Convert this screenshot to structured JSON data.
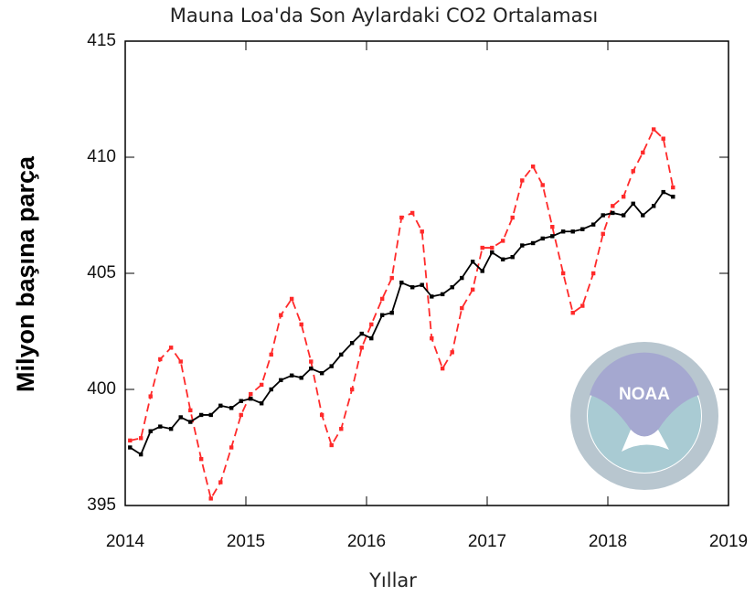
{
  "chart_data": {
    "type": "line",
    "title": "Mauna Loa'da Son Aylardaki CO2 Ortalaması",
    "xlabel": "Yıllar",
    "ylabel": "Milyon başına parça",
    "logo_text": "NOAA",
    "x": [
      2014.04,
      2014.13,
      2014.21,
      2014.29,
      2014.38,
      2014.46,
      2014.54,
      2014.63,
      2014.71,
      2014.79,
      2014.88,
      2014.96,
      2015.04,
      2015.13,
      2015.21,
      2015.29,
      2015.38,
      2015.46,
      2015.54,
      2015.63,
      2015.71,
      2015.79,
      2015.88,
      2015.96,
      2016.04,
      2016.13,
      2016.21,
      2016.29,
      2016.38,
      2016.46,
      2016.54,
      2016.63,
      2016.71,
      2016.79,
      2016.88,
      2016.96,
      2017.04,
      2017.13,
      2017.21,
      2017.29,
      2017.38,
      2017.46,
      2017.54,
      2017.63,
      2017.71,
      2017.79,
      2017.88,
      2017.96,
      2018.04,
      2018.13,
      2018.21,
      2018.29,
      2018.38,
      2018.46,
      2018.54
    ],
    "series": [
      {
        "color": "#ff2a2a",
        "dashed": true,
        "markers": true,
        "values": [
          397.8,
          397.9,
          399.7,
          401.3,
          401.8,
          401.2,
          399.1,
          397.0,
          395.3,
          396.0,
          397.5,
          398.9,
          399.8,
          400.2,
          401.5,
          403.2,
          403.9,
          402.8,
          401.2,
          398.9,
          397.6,
          398.3,
          400.0,
          401.8,
          402.8,
          403.9,
          404.8,
          407.4,
          407.6,
          406.8,
          402.2,
          400.9,
          401.6,
          403.5,
          404.3,
          406.1,
          406.1,
          406.4,
          407.4,
          409.0,
          409.6,
          408.8,
          407.0,
          405.0,
          403.3,
          403.6,
          405.0,
          406.7,
          407.9,
          408.3,
          409.4,
          410.2,
          411.2,
          410.8,
          408.7
        ]
      },
      {
        "color": "#000000",
        "dashed": false,
        "markers": true,
        "values": [
          397.5,
          397.2,
          398.2,
          398.4,
          398.3,
          398.8,
          398.6,
          398.9,
          398.9,
          399.3,
          399.2,
          399.5,
          399.6,
          399.4,
          400.0,
          400.4,
          400.6,
          400.5,
          400.9,
          400.7,
          401.0,
          401.5,
          402.0,
          402.4,
          402.2,
          403.2,
          403.3,
          404.6,
          404.4,
          404.5,
          404.0,
          404.1,
          404.4,
          404.8,
          405.5,
          405.1,
          405.9,
          405.6,
          405.7,
          406.2,
          406.3,
          406.5,
          406.6,
          406.8,
          406.8,
          406.9,
          407.1,
          407.5,
          407.6,
          407.5,
          408.0,
          407.5,
          407.9,
          408.5,
          408.3
        ]
      }
    ],
    "xlim": [
      2014,
      2019
    ],
    "xticks": [
      2014,
      2015,
      2016,
      2017,
      2018,
      2019
    ],
    "ylim": [
      395,
      415
    ],
    "yticks": [
      395,
      400,
      405,
      410,
      415
    ],
    "grid": false
  }
}
